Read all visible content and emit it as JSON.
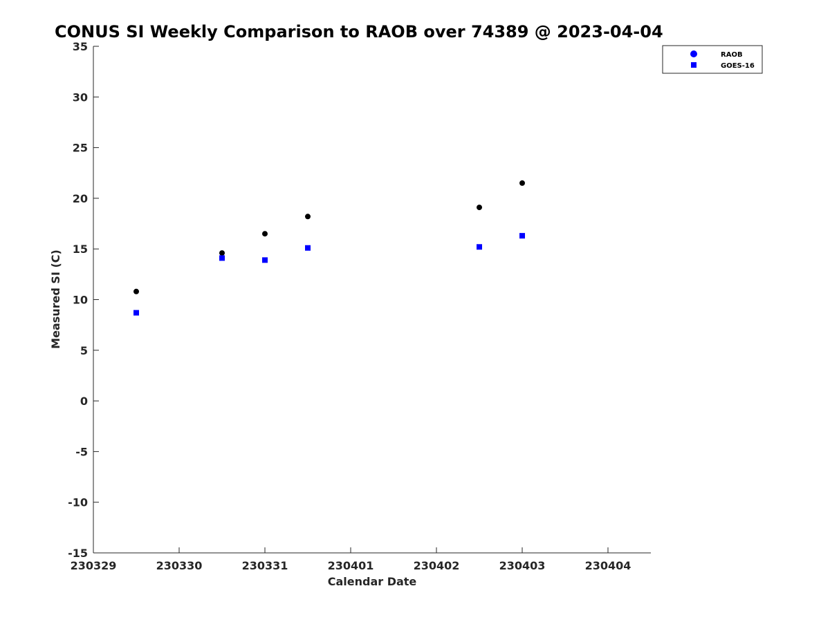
{
  "chart_data": {
    "type": "scatter",
    "title": "CONUS SI Weekly Comparison to RAOB over 74389 @ 2023-04-04",
    "xlabel": "Calendar Date",
    "ylabel": "Measured SI (C)",
    "xlim": [
      "230329",
      "230404T12"
    ],
    "ylim": [
      -15,
      35
    ],
    "x_ticks": [
      "230329",
      "230330",
      "230331",
      "230401",
      "230402",
      "230403",
      "230404"
    ],
    "y_ticks": [
      -15,
      -10,
      -5,
      0,
      5,
      10,
      15,
      20,
      25,
      30,
      35
    ],
    "grid": false,
    "legend_position": "top-right",
    "series": [
      {
        "name": "RAOB",
        "marker": "circle",
        "legend_color": "#0000ff",
        "color": "#000000",
        "points": [
          {
            "x": "230329T12",
            "y": 10.8
          },
          {
            "x": "230330T12",
            "y": 14.6
          },
          {
            "x": "230331T00",
            "y": 16.5
          },
          {
            "x": "230331T12",
            "y": 18.2
          },
          {
            "x": "230402T12",
            "y": 19.1
          },
          {
            "x": "230403T00",
            "y": 21.5
          }
        ]
      },
      {
        "name": "GOES-16",
        "marker": "square",
        "legend_color": "#0000ff",
        "color": "#0000ff",
        "points": [
          {
            "x": "230329T12",
            "y": 8.7
          },
          {
            "x": "230330T12",
            "y": 14.1
          },
          {
            "x": "230331T00",
            "y": 13.9
          },
          {
            "x": "230331T12",
            "y": 15.1
          },
          {
            "x": "230402T12",
            "y": 15.2
          },
          {
            "x": "230403T00",
            "y": 16.3
          }
        ]
      }
    ]
  }
}
